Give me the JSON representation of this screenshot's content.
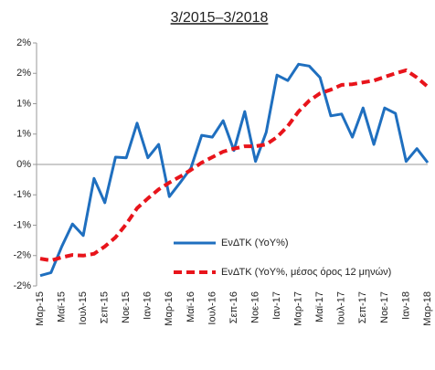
{
  "chart_data": {
    "type": "line",
    "title": "3/2015–3/2018",
    "categories": [
      "Μαρ-15",
      null,
      "Μαϊ-15",
      null,
      "Ιουλ-15",
      null,
      "Σεπ-15",
      null,
      "Νοε-15",
      null,
      "Ιαν-16",
      null,
      "Μαρ-16",
      null,
      "Μαϊ-16",
      null,
      "Ιουλ-16",
      null,
      "Σεπ-16",
      null,
      "Νοε-16",
      null,
      "Ιαν-17",
      null,
      "Μαρ-17",
      null,
      "Μαϊ-17",
      null,
      "Ιουλ-17",
      null,
      "Σεπ-17",
      null,
      "Νοε-17",
      null,
      "Ιαν-18",
      null,
      "Μαρ-18"
    ],
    "series": [
      {
        "name": "ΕνΔΤΚ (YoY%)",
        "color": "#1f6fbf",
        "dashed": false,
        "values": [
          -1.83,
          -1.78,
          -1.35,
          -0.98,
          -1.17,
          -0.23,
          -0.63,
          0.12,
          0.11,
          0.68,
          0.11,
          0.33,
          -0.53,
          -0.3,
          -0.06,
          0.48,
          0.45,
          0.72,
          0.23,
          0.87,
          0.05,
          0.53,
          1.47,
          1.38,
          1.65,
          1.62,
          1.43,
          0.8,
          0.83,
          0.45,
          0.93,
          0.33,
          0.93,
          0.84,
          0.05,
          0.26,
          0.03
        ]
      },
      {
        "name": "ΕνΔΤΚ (YoY%, μέσος όρος 12 μηνών)",
        "color": "#e8141b",
        "dashed": true,
        "values": [
          -1.55,
          -1.58,
          -1.53,
          -1.49,
          -1.5,
          -1.47,
          -1.35,
          -1.2,
          -0.98,
          -0.72,
          -0.56,
          -0.41,
          -0.3,
          -0.2,
          -0.09,
          0.03,
          0.12,
          0.21,
          0.26,
          0.3,
          0.3,
          0.33,
          0.45,
          0.63,
          0.87,
          1.05,
          1.17,
          1.23,
          1.31,
          1.32,
          1.35,
          1.38,
          1.44,
          1.5,
          1.55,
          1.43,
          1.28
        ]
      }
    ],
    "ylim": [
      -2,
      2
    ],
    "yticks": [
      {
        "value": 2,
        "label": "2%"
      },
      {
        "value": 1.5,
        "label": "2%"
      },
      {
        "value": 1,
        "label": "1%"
      },
      {
        "value": 0.5,
        "label": "1%"
      },
      {
        "value": 0,
        "label": "0%"
      },
      {
        "value": -0.5,
        "label": "-1%"
      },
      {
        "value": -1,
        "label": "-1%"
      },
      {
        "value": -1.5,
        "label": "-2%"
      },
      {
        "value": -2,
        "label": "-2%"
      }
    ],
    "grid": false,
    "legend": "lower right"
  }
}
